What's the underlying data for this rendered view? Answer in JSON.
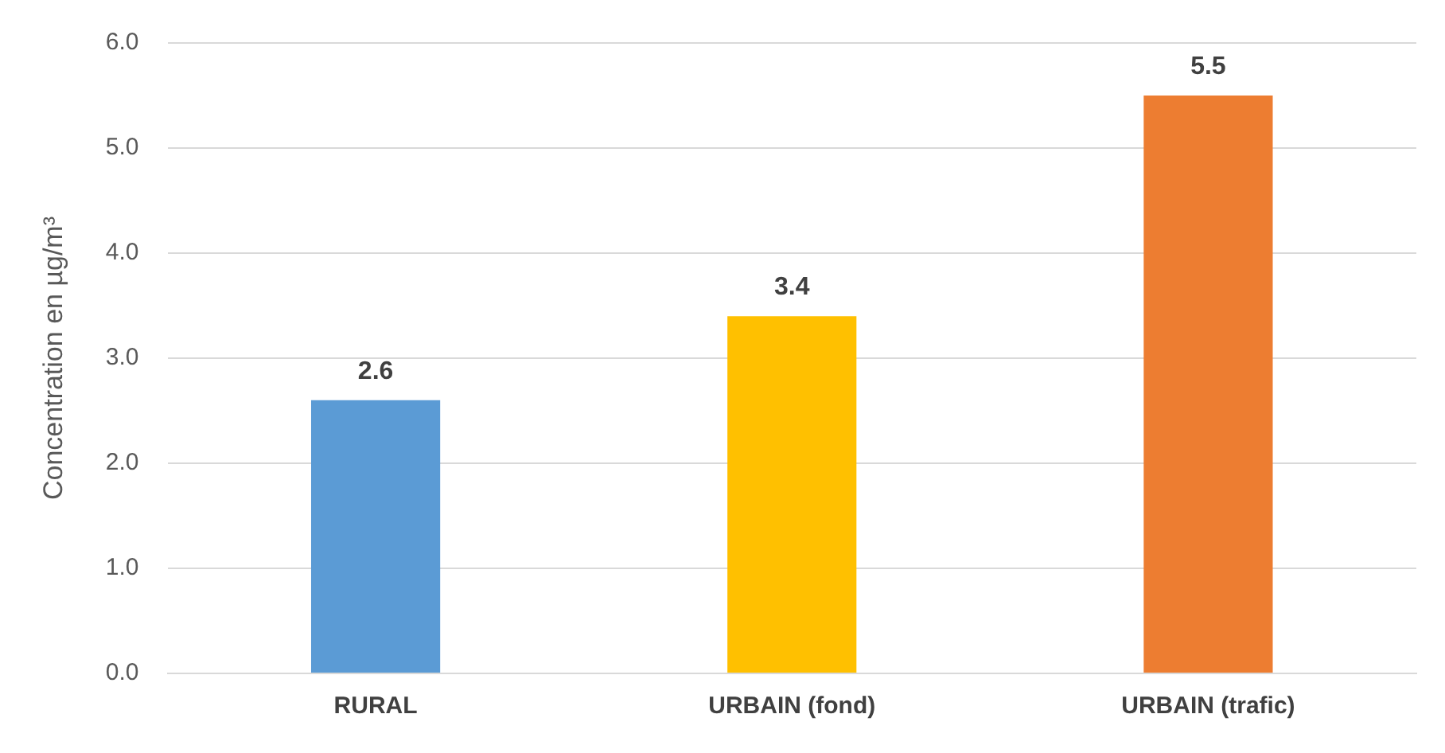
{
  "chart_data": {
    "type": "bar",
    "ylabel": "Concentration en µg/m³",
    "categories": [
      "RURAL",
      "URBAIN (fond)",
      "URBAIN (trafic)"
    ],
    "values": [
      2.6,
      3.4,
      5.5
    ],
    "colors": [
      "#5b9bd5",
      "#ffc000",
      "#ed7d31"
    ],
    "ylim": [
      0,
      6
    ],
    "yticks": [
      {
        "value": 0,
        "label": "0.0"
      },
      {
        "value": 1,
        "label": "1.0"
      },
      {
        "value": 2,
        "label": "2.0"
      },
      {
        "value": 3,
        "label": "3.0"
      },
      {
        "value": 4,
        "label": "4.0"
      },
      {
        "value": 5,
        "label": "5.0"
      },
      {
        "value": 6,
        "label": "6.0"
      }
    ],
    "grid": "y",
    "legend": false,
    "data_labels": true
  }
}
